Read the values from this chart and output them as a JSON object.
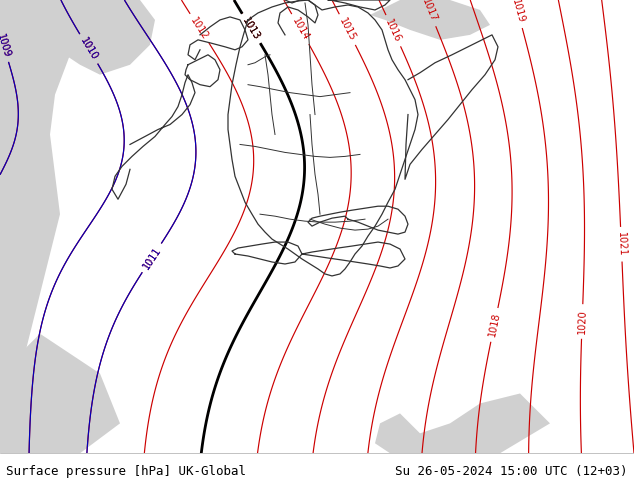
{
  "title_left": "Surface pressure [hPa] UK-Global",
  "title_right": "Su 26-05-2024 15:00 UTC (12+03)",
  "bg_color": "#b8e0b0",
  "sea_color": "#d0d0d0",
  "contour_color_red": "#cc0000",
  "contour_color_blue": "#0000bb",
  "contour_color_black": "#000000",
  "contour_color_border": "#333333",
  "label_fontsize": 7,
  "title_fontsize": 9,
  "figsize": [
    6.34,
    4.9
  ],
  "dpi": 100
}
